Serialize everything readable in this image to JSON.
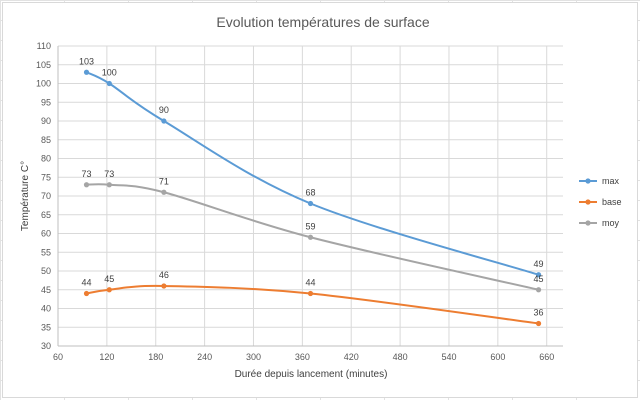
{
  "chart_data": {
    "type": "line",
    "title": "Evolution températures de surface",
    "xlabel": "Durée depuis lancement (minutes)",
    "ylabel": "Température  C°",
    "xlim": [
      60,
      680
    ],
    "ylim": [
      30,
      110
    ],
    "x_ticks": [
      60,
      120,
      180,
      240,
      300,
      360,
      420,
      480,
      540,
      600,
      660
    ],
    "y_ticks": [
      30,
      35,
      40,
      45,
      50,
      55,
      60,
      65,
      70,
      75,
      80,
      85,
      90,
      95,
      100,
      105,
      110
    ],
    "grid": true,
    "smooth": true,
    "legend_position": "right",
    "x": [
      95,
      123,
      190,
      370,
      650
    ],
    "series": [
      {
        "name": "max",
        "color": "#5b9bd5",
        "values": [
          103,
          100,
          90,
          68,
          49
        ],
        "labels": [
          "103",
          "100",
          "90",
          "68",
          "49"
        ]
      },
      {
        "name": "base",
        "color": "#ed7d31",
        "values": [
          44,
          45,
          46,
          44,
          36
        ],
        "labels": [
          "44",
          "45",
          "46",
          "44",
          "36"
        ]
      },
      {
        "name": "moy",
        "color": "#a5a5a5",
        "values": [
          73,
          73,
          71,
          59,
          45
        ],
        "labels": [
          "73",
          "73",
          "71",
          "59",
          "45"
        ]
      }
    ]
  }
}
